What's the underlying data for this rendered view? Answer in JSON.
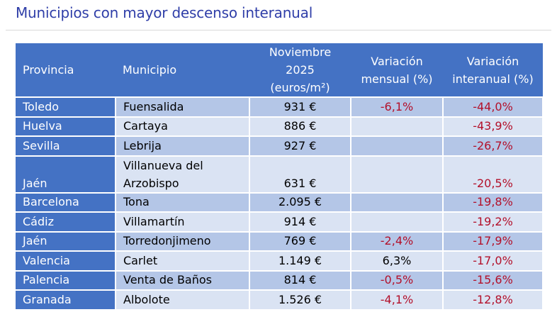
{
  "title": "Municipios con mayor descenso interanual",
  "table": {
    "headers": {
      "provincia": "Provincia",
      "municipio": "Municipio",
      "precio_l1": "Noviembre",
      "precio_l2": "2025",
      "precio_l3": "(euros/m²)",
      "mensual_l1": "Variación",
      "mensual_l2": "mensual (%)",
      "interanual_l1": "Variación",
      "interanual_l2": "interanual (%)"
    },
    "rows": [
      {
        "provincia": "Toledo",
        "municipio": "Fuensalida",
        "precio": "931 €",
        "mensual": "-6,1%",
        "interanual": "-44,0%"
      },
      {
        "provincia": "Huelva",
        "municipio": "Cartaya",
        "precio": "886 €",
        "mensual": "",
        "interanual": "-43,9%"
      },
      {
        "provincia": "Sevilla",
        "municipio": "Lebrija",
        "precio": "927 €",
        "mensual": "",
        "interanual": "-26,7%"
      },
      {
        "provincia": "Jaén",
        "municipio_l1": "Villanueva del",
        "municipio_l2": "Arzobispo",
        "precio": "631 €",
        "mensual": "",
        "interanual": "-20,5%"
      },
      {
        "provincia": "Barcelona",
        "municipio": "Tona",
        "precio": "2.095 €",
        "mensual": "",
        "interanual": "-19,8%"
      },
      {
        "provincia": "Cádiz",
        "municipio": "Villamartín",
        "precio": "914 €",
        "mensual": "",
        "interanual": "-19,2%"
      },
      {
        "provincia": "Jaén",
        "municipio": "Torredonjimeno",
        "precio": "769 €",
        "mensual": "-2,4%",
        "interanual": "-17,9%"
      },
      {
        "provincia": "Valencia",
        "municipio": "Carlet",
        "precio": "1.149 €",
        "mensual": "6,3%",
        "interanual": "-17,0%"
      },
      {
        "provincia": "Palencia",
        "municipio": "Venta de Baños",
        "precio": "814 €",
        "mensual": "-0,5%",
        "interanual": "-15,6%"
      },
      {
        "provincia": "Granada",
        "municipio": "Albolote",
        "precio": "1.526 €",
        "mensual": "-4,1%",
        "interanual": "-12,8%"
      }
    ]
  }
}
